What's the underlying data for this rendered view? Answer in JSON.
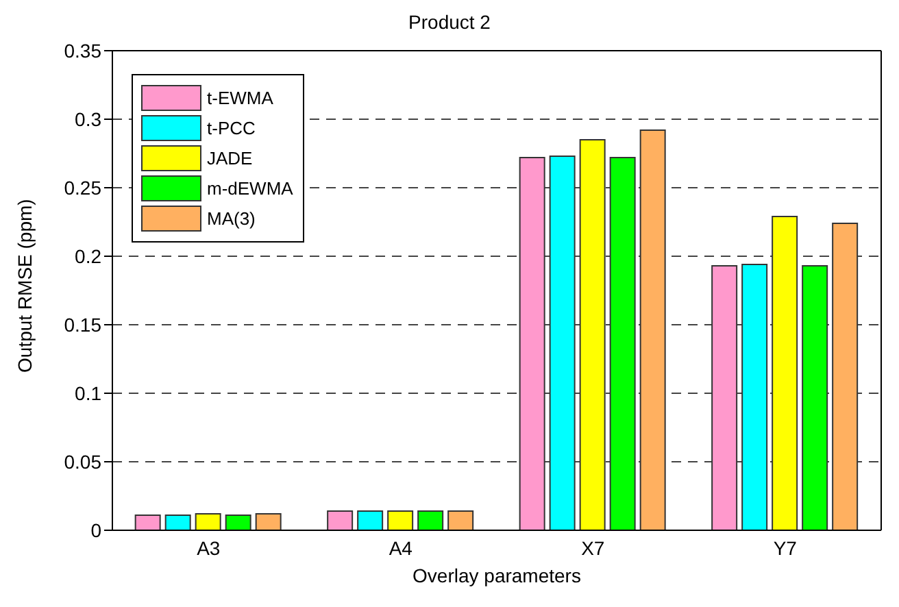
{
  "chart_data": {
    "type": "bar",
    "title": "Product 2",
    "xlabel": "Overlay parameters",
    "ylabel": "Output RMSE (ppm)",
    "categories": [
      "A3",
      "A4",
      "X7",
      "Y7"
    ],
    "series": [
      {
        "name": "t-EWMA",
        "color": "#ff99cc",
        "values": [
          0.011,
          0.014,
          0.272,
          0.193
        ]
      },
      {
        "name": "t-PCC",
        "color": "#00ffff",
        "values": [
          0.011,
          0.014,
          0.273,
          0.194
        ]
      },
      {
        "name": "JADE",
        "color": "#ffff00",
        "values": [
          0.012,
          0.014,
          0.285,
          0.229
        ]
      },
      {
        "name": "m-dEWMA",
        "color": "#00ff00",
        "values": [
          0.011,
          0.014,
          0.272,
          0.193
        ]
      },
      {
        "name": "MA(3)",
        "color": "#ffb060",
        "values": [
          0.012,
          0.014,
          0.292,
          0.224
        ]
      }
    ],
    "ylim": [
      0,
      0.35
    ],
    "yticks": [
      0,
      0.05,
      0.1,
      0.15,
      0.2,
      0.25,
      0.3,
      0.35
    ],
    "grid": "y",
    "legend": "top left"
  }
}
